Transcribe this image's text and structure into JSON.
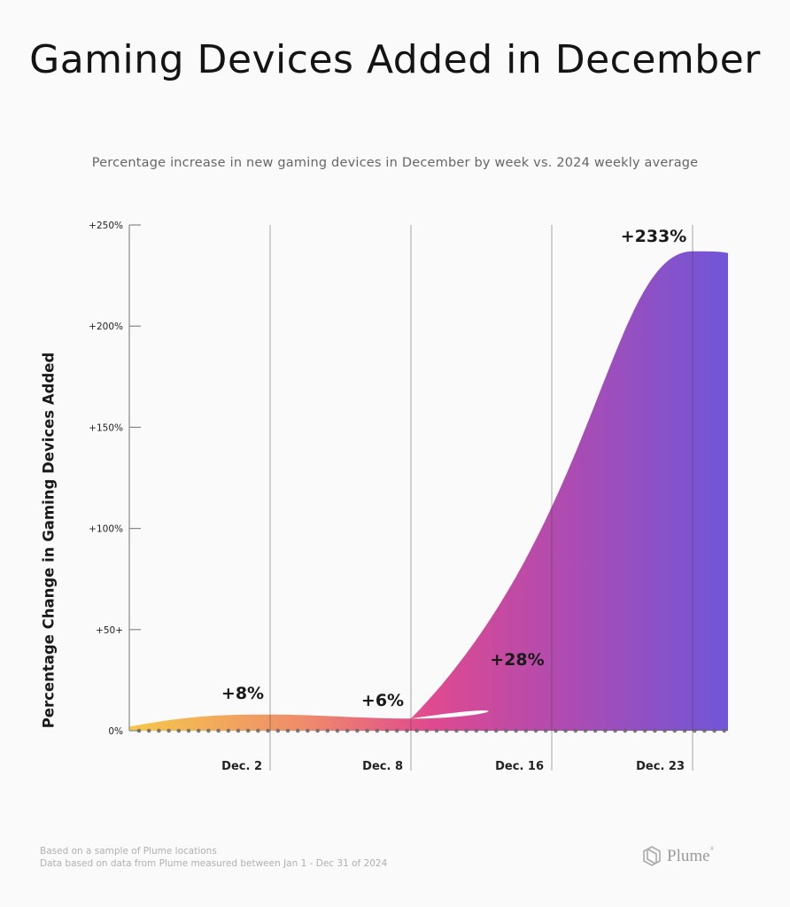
{
  "chart_data": {
    "type": "area",
    "title": "Gaming Devices Added in December",
    "subtitle": "Percentage increase in new gaming devices in December by week vs. 2024 weekly average",
    "xlabel": "",
    "ylabel": "Percentage Change in Gaming Devices Added",
    "ylim": [
      0,
      250
    ],
    "y_ticks": [
      {
        "value": 0,
        "label": "0%"
      },
      {
        "value": 50,
        "label": "+50+"
      },
      {
        "value": 100,
        "label": "+100%"
      },
      {
        "value": 150,
        "label": "+150%"
      },
      {
        "value": 200,
        "label": "+200%"
      },
      {
        "value": 250,
        "label": "+250%"
      }
    ],
    "categories": [
      "Dec. 2",
      "Dec. 8",
      "Dec. 16",
      "Dec. 23"
    ],
    "series": [
      {
        "name": "Percentage increase",
        "values": [
          8,
          6,
          28,
          233
        ]
      }
    ],
    "data_labels": [
      "+8%",
      "+6%",
      "+28%",
      "+233%"
    ],
    "grid": "vertical lines at each week",
    "gradient_colors": [
      "#f5c84a",
      "#ee8a6c",
      "#e04a8e",
      "#b04bb0",
      "#7056d8"
    ],
    "baseline_dots_color": "#666666"
  },
  "footer": {
    "note1": "Based on a sample of Plume locations",
    "note2": "Data based on data from Plume measured between Jan 1 - Dec 31 of 2024",
    "logo_text": "Plume",
    "logo_mark": "®"
  }
}
